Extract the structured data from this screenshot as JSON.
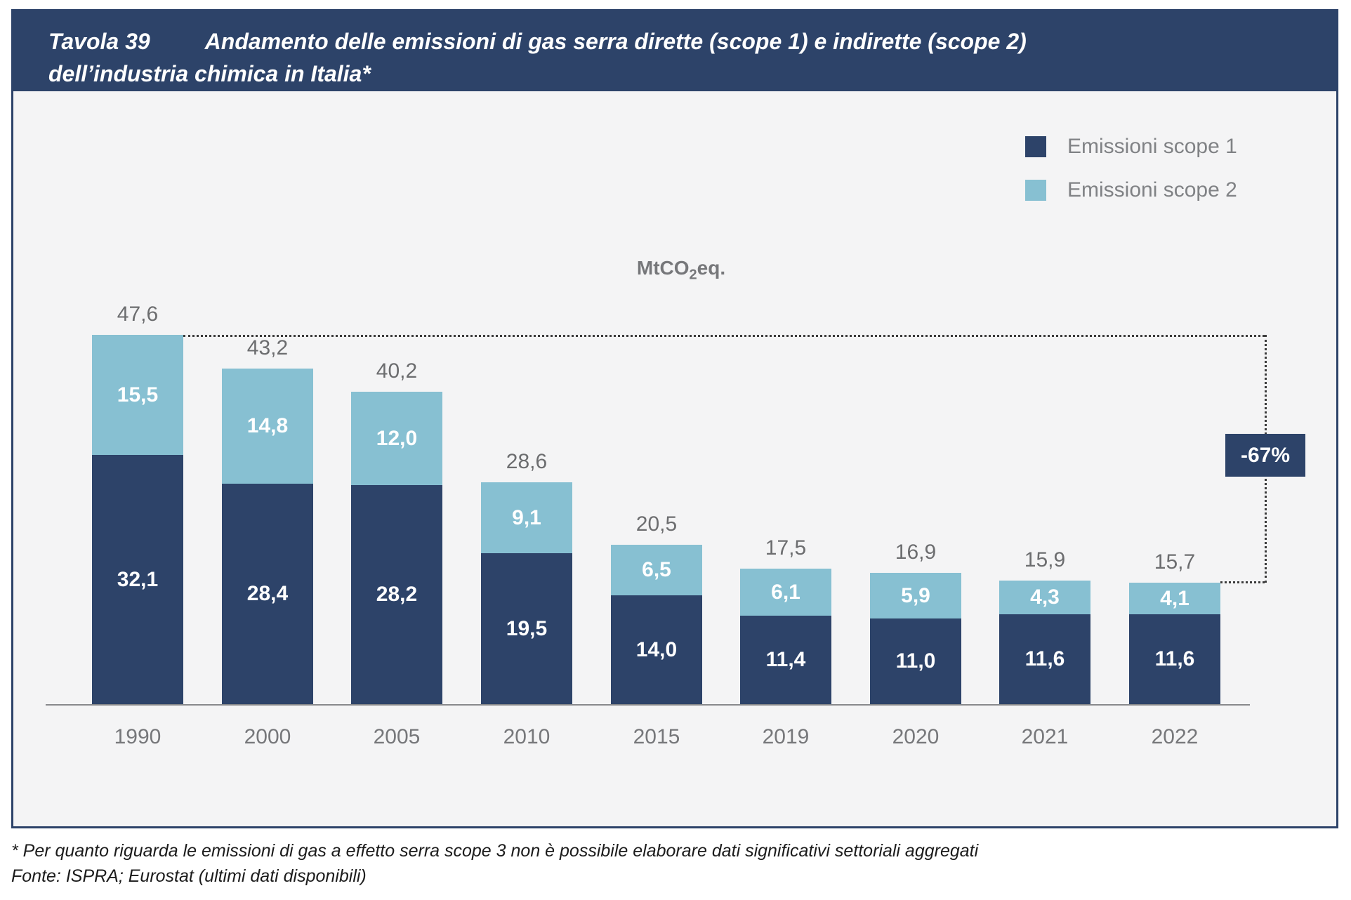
{
  "title": {
    "prefix": "Tavola 39",
    "line1": "Andamento delle emissioni di gas serra dirette (scope 1) e indirette (scope 2)",
    "line2": "dell’industria chimica in Italia*"
  },
  "unit_label": {
    "prefix": "MtCO",
    "sub": "2",
    "suffix": "eq."
  },
  "annotation": {
    "label": "-67%"
  },
  "footnotes": [
    "* Per quanto riguarda le emissioni di gas a effetto serra scope 3 non è possibile elaborare dati significativi settoriali aggregati",
    "Fonte: ISPRA; Eurostat (ultimi dati disponibili)"
  ],
  "colors": {
    "navy": "#2d4369",
    "light_blue": "#87c0d2",
    "panel_background": "#f4f4f5",
    "axis_gray": "#88898c",
    "label_gray": "#76777a"
  },
  "chart_data": {
    "type": "bar",
    "stacked": true,
    "title": "Andamento delle emissioni di gas serra dirette (scope 1) e indirette (scope 2) dell'industria chimica in Italia",
    "ylabel": "MtCO2eq.",
    "grid": false,
    "legend_position": "top-right",
    "categories": [
      "1990",
      "2000",
      "2005",
      "2010",
      "2015",
      "2019",
      "2020",
      "2021",
      "2022"
    ],
    "series": [
      {
        "name": "Emissioni scope 1",
        "color": "#2d4369",
        "values": [
          32.1,
          28.4,
          28.2,
          19.5,
          14.0,
          11.4,
          11.0,
          11.6,
          11.6
        ],
        "labels": [
          "32,1",
          "28,4",
          "28,2",
          "19,5",
          "14,0",
          "11,4",
          "11,0",
          "11,6",
          "11,6"
        ]
      },
      {
        "name": "Emissioni scope 2",
        "color": "#87c0d2",
        "values": [
          15.5,
          14.8,
          12.0,
          9.1,
          6.5,
          6.1,
          5.9,
          4.3,
          4.1
        ],
        "labels": [
          "15,5",
          "14,8",
          "12,0",
          "9,1",
          "6,5",
          "6,1",
          "5,9",
          "4,3",
          "4,1"
        ]
      }
    ],
    "totals": [
      47.6,
      43.2,
      40.2,
      28.6,
      20.5,
      17.5,
      16.9,
      15.9,
      15.7
    ],
    "total_labels": [
      "47,6",
      "43,2",
      "40,2",
      "28,6",
      "20,5",
      "17,5",
      "16,9",
      "15,9",
      "15,7"
    ],
    "annotation": "-67%",
    "annotation_meaning": "variazione 1990-2022"
  }
}
